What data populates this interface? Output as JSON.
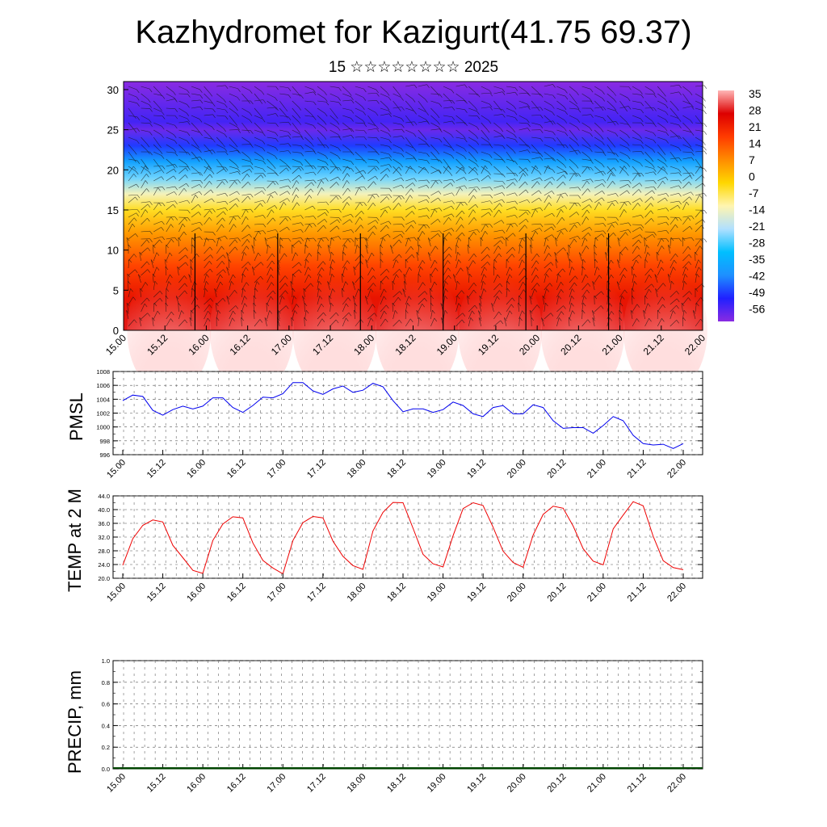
{
  "header": {
    "title": "Kazhydromet for Kazigurt(41.75 69.37)",
    "subtitle": "15 ☆☆☆☆☆☆☆☆ 2025"
  },
  "colors": {
    "pmsl_line": "#0000ee",
    "temp_line": "#ee0000",
    "precip_line": "#004400",
    "colormap": [
      "#8a2be2",
      "#2020ff",
      "#1e90ff",
      "#00bfff",
      "#b0e0ff",
      "#fff5b0",
      "#ffd700",
      "#ff8c00",
      "#ff3b00",
      "#dd0000",
      "#ffb6b6"
    ]
  },
  "chart_data": [
    {
      "type": "heatmap",
      "name": "cross-section",
      "ylim": [
        0,
        31
      ],
      "yticks": [
        "0",
        "5",
        "10",
        "15",
        "20",
        "25",
        "30"
      ],
      "xticks": [
        "15.00",
        "15.12",
        "16.00",
        "16.12",
        "17.00",
        "17.12",
        "18.00",
        "18.12",
        "19.00",
        "19.12",
        "20.00",
        "20.12",
        "21.00",
        "21.12",
        "22.00"
      ],
      "colorbar_labels": [
        "35",
        "28",
        "21",
        "14",
        "7",
        "0",
        "-7",
        "-14",
        "-21",
        "-28",
        "-35",
        "-42",
        "-49",
        "-56"
      ],
      "colorbar_range": [
        -63,
        42
      ],
      "profile": [
        {
          "h": 0,
          "v": 33
        },
        {
          "h": 4,
          "v": 28
        },
        {
          "h": 8,
          "v": 20
        },
        {
          "h": 12,
          "v": 9
        },
        {
          "h": 15,
          "v": -2
        },
        {
          "h": 17,
          "v": -12
        },
        {
          "h": 19,
          "v": -25
        },
        {
          "h": 21,
          "v": -38
        },
        {
          "h": 23,
          "v": -50
        },
        {
          "h": 25,
          "v": -60
        },
        {
          "h": 26,
          "v": -56
        },
        {
          "h": 31,
          "v": -63
        }
      ]
    },
    {
      "type": "line",
      "ylabel": "PMSL",
      "ylim": [
        996,
        1008
      ],
      "yticks": [
        "996",
        "998",
        "1000",
        "1002",
        "1004",
        "1006",
        "1008"
      ],
      "xticks": [
        "15.00",
        "15.12",
        "16.00",
        "16.12",
        "17.00",
        "17.12",
        "18.00",
        "18.12",
        "19.00",
        "19.12",
        "20.00",
        "20.12",
        "21.00",
        "21.12",
        "22.00"
      ],
      "series": [
        {
          "values": [
            1003.8,
            1004.6,
            1004.4,
            1002.4,
            1001.7,
            1002.5,
            1003.0,
            1002.6,
            1003.0,
            1004.2,
            1004.2,
            1002.8,
            1002.1,
            1003.1,
            1004.3,
            1004.2,
            1004.8,
            1006.4,
            1006.4,
            1005.2,
            1004.7,
            1005.5,
            1005.9,
            1005.0,
            1005.3,
            1006.3,
            1005.8,
            1003.8,
            1002.2,
            1002.6,
            1002.6,
            1002.1,
            1002.5,
            1003.6,
            1003.1,
            1001.9,
            1001.5,
            1002.8,
            1003.1,
            1001.9,
            1001.9,
            1003.2,
            1002.8,
            1000.9,
            999.8,
            999.9,
            999.9,
            999.1,
            1000.2,
            1001.5,
            1000.9,
            998.8,
            997.6,
            997.4,
            997.5,
            996.9,
            997.6
          ]
        }
      ]
    },
    {
      "type": "line",
      "ylabel": "TEMP at 2 M",
      "ylim": [
        20,
        44
      ],
      "yticks": [
        "20.0",
        "24.0",
        "28.0",
        "32.0",
        "36.0",
        "40.0",
        "44.0"
      ],
      "xticks": [
        "15.00",
        "15.12",
        "16.00",
        "16.12",
        "17.00",
        "17.12",
        "18.00",
        "18.12",
        "19.00",
        "19.12",
        "20.00",
        "20.12",
        "21.00",
        "21.12",
        "22.00"
      ],
      "series": [
        {
          "values": [
            23.8,
            31.5,
            35.4,
            37.0,
            36.4,
            29.6,
            26.0,
            22.3,
            21.4,
            31.0,
            35.8,
            37.9,
            37.6,
            30.3,
            25.2,
            23.0,
            21.3,
            31.0,
            36.2,
            38.0,
            37.6,
            30.8,
            26.4,
            23.7,
            22.6,
            33.8,
            39.2,
            42.1,
            42.0,
            34.6,
            27.0,
            24.2,
            23.3,
            32.4,
            40.3,
            42.0,
            41.2,
            34.9,
            27.9,
            24.6,
            23.2,
            32.6,
            38.6,
            41.0,
            40.4,
            35.2,
            28.6,
            25.0,
            23.9,
            34.4,
            38.4,
            42.3,
            41.1,
            32.2,
            25.1,
            23.1,
            22.5
          ]
        }
      ]
    },
    {
      "type": "line",
      "ylabel": "PRECIP, mm",
      "ylim": [
        0,
        1
      ],
      "yticks": [
        "0.0",
        "0.2",
        "0.4",
        "0.6",
        "0.8",
        "1.0"
      ],
      "xticks": [
        "15.00",
        "15.12",
        "16.00",
        "16.12",
        "17.00",
        "17.12",
        "18.00",
        "18.12",
        "19.00",
        "19.12",
        "20.00",
        "20.12",
        "21.00",
        "21.12",
        "22.00"
      ],
      "series": [
        {
          "values": [
            0,
            0,
            0,
            0,
            0,
            0,
            0,
            0,
            0,
            0,
            0,
            0,
            0,
            0,
            0,
            0,
            0,
            0,
            0,
            0,
            0,
            0,
            0,
            0,
            0,
            0,
            0,
            0,
            0,
            0,
            0,
            0,
            0,
            0,
            0,
            0,
            0,
            0,
            0,
            0,
            0,
            0,
            0,
            0,
            0,
            0,
            0,
            0,
            0,
            0,
            0,
            0,
            0,
            0,
            0,
            0,
            0
          ]
        }
      ]
    }
  ]
}
